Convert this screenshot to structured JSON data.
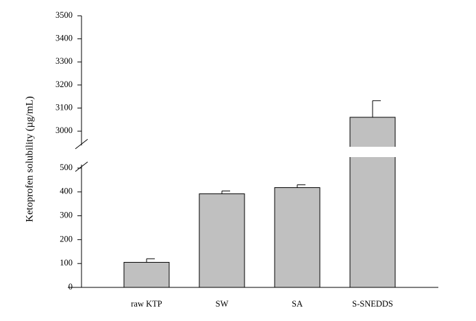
{
  "chart_data": {
    "type": "bar",
    "title": "",
    "xlabel": "",
    "ylabel": "Ketoprofen solubility (µg/mL)",
    "axis_break": {
      "lower_range": [
        0,
        500
      ],
      "upper_range": [
        2950,
        3500
      ]
    },
    "ylim": [
      0,
      3500
    ],
    "y_ticks_lower": [
      "0",
      "100",
      "200",
      "300",
      "400",
      "500"
    ],
    "y_ticks_upper": [
      "3000",
      "3100",
      "3200",
      "3300",
      "3400",
      "3500"
    ],
    "categories": [
      "raw KTP",
      "SW",
      "SA",
      "S-SNEDDS"
    ],
    "series": [
      {
        "values": [
          105,
          392,
          418,
          3060
        ],
        "errors": [
          15,
          12,
          12,
          72
        ]
      }
    ],
    "bar_color": "#c0c0c0",
    "grid": false,
    "legend": "none"
  }
}
